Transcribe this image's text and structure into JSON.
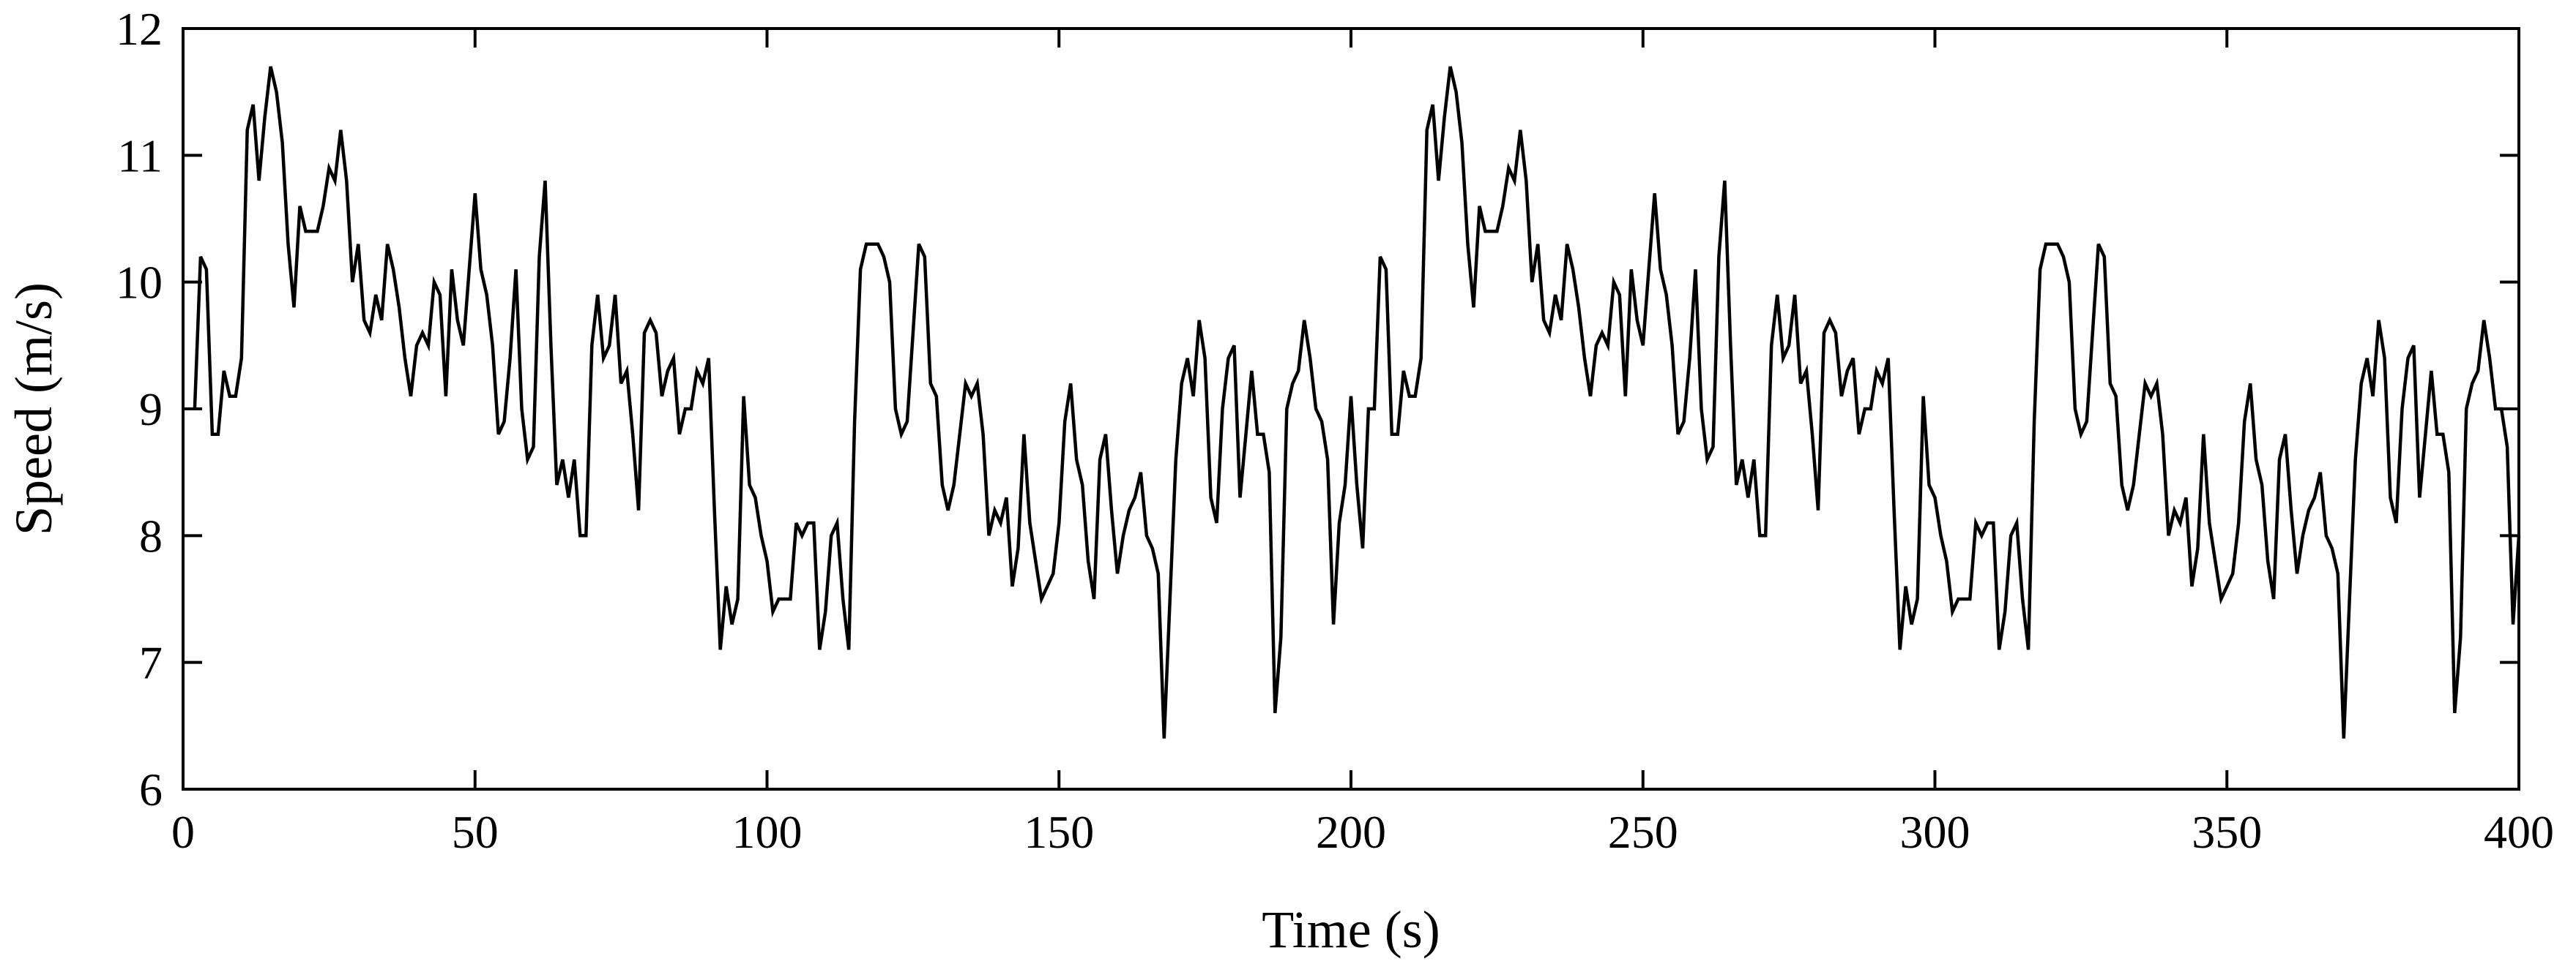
{
  "chart_data": {
    "type": "line",
    "title": "",
    "xlabel": "Time (s)",
    "ylabel": "Speed (m/s)",
    "xlim": [
      0,
      400
    ],
    "ylim": [
      6,
      12
    ],
    "xticks": [
      0,
      50,
      100,
      150,
      200,
      250,
      300,
      350,
      400
    ],
    "yticks": [
      6,
      7,
      8,
      9,
      10,
      11,
      12
    ],
    "grid": false,
    "series": [
      {
        "color": "#000000",
        "x": [
          2,
          3,
          4,
          5,
          6,
          7,
          8,
          9,
          10,
          11,
          12,
          13,
          14,
          15,
          16,
          17,
          18,
          19,
          20,
          21,
          22,
          23,
          24,
          25,
          26,
          27,
          28,
          29,
          30,
          31,
          32,
          33,
          34,
          35,
          36,
          37,
          38,
          39,
          40,
          41,
          42,
          43,
          44,
          45,
          46,
          47,
          48,
          49,
          50,
          51,
          52,
          53,
          54,
          55,
          56,
          57,
          58,
          59,
          60,
          61,
          62,
          63,
          64,
          65,
          66,
          67,
          68,
          69,
          70,
          71,
          72,
          73,
          74,
          75,
          76,
          77,
          78,
          79,
          80,
          81,
          82,
          83,
          84,
          85,
          86,
          87,
          88,
          89,
          90,
          91,
          92,
          93,
          94,
          95,
          96,
          97,
          98,
          99,
          100,
          101,
          102,
          103,
          104,
          105,
          106,
          107,
          108,
          109,
          110,
          111,
          112,
          113,
          114,
          115,
          116,
          117,
          118,
          119,
          120,
          121,
          122,
          123,
          124,
          125,
          126,
          127,
          128,
          129,
          130,
          131,
          132,
          133,
          134,
          135,
          136,
          137,
          138,
          139,
          140,
          141,
          142,
          143,
          144,
          145,
          146,
          147,
          148,
          149,
          150,
          151,
          152,
          153,
          154,
          155,
          156,
          157,
          158,
          159,
          160,
          161,
          162,
          163,
          164,
          165,
          166,
          167,
          168,
          169,
          170,
          171,
          172,
          173,
          174,
          175,
          176,
          177,
          178,
          179,
          180,
          181,
          182,
          183,
          184,
          185,
          186,
          187,
          188,
          189,
          190,
          191,
          192,
          193,
          194,
          195,
          196,
          197,
          198,
          199,
          200,
          201,
          202,
          203,
          204,
          205,
          206,
          207,
          208,
          209,
          210,
          211,
          212,
          213,
          214,
          215,
          216,
          217,
          218,
          219,
          220,
          221,
          222,
          223,
          224,
          225,
          226,
          227,
          228,
          229,
          230,
          231,
          232,
          233,
          234,
          235,
          236,
          237,
          238,
          239,
          240,
          241,
          242,
          243,
          244,
          245,
          246,
          247,
          248,
          249,
          250,
          251,
          252,
          253,
          254,
          255,
          256,
          257,
          258,
          259,
          260,
          261,
          262,
          263,
          264,
          265,
          266,
          267,
          268,
          269,
          270,
          271,
          272,
          273,
          274,
          275,
          276,
          277,
          278,
          279,
          280,
          281,
          282,
          283,
          284,
          285,
          286,
          287,
          288,
          289,
          290,
          291,
          292,
          293,
          294,
          295,
          296,
          297,
          298,
          299,
          300,
          301,
          302,
          303,
          304,
          305,
          306,
          307,
          308,
          309,
          310,
          311,
          312,
          313,
          314,
          315,
          316,
          317,
          318,
          319,
          320,
          321,
          322,
          323,
          324,
          325,
          326,
          327,
          328,
          329,
          330,
          331,
          332,
          333,
          334,
          335,
          336,
          337,
          338,
          339,
          340,
          341,
          342,
          343,
          344,
          345,
          346,
          347,
          348,
          349,
          350,
          351,
          352,
          353,
          354,
          355,
          356,
          357,
          358,
          359,
          360,
          361,
          362,
          363,
          364,
          365,
          366,
          367,
          368,
          369,
          370,
          371,
          372,
          373,
          374,
          375,
          376,
          377,
          378,
          379,
          380,
          381,
          382,
          383,
          384,
          385,
          386,
          387,
          388,
          389,
          390,
          391,
          392,
          393,
          394,
          395,
          396,
          397,
          398,
          399,
          400
        ],
        "y": [
          9.0,
          10.2,
          10.1,
          8.8,
          8.8,
          9.3,
          9.1,
          9.1,
          9.4,
          11.2,
          11.4,
          10.8,
          11.3,
          11.7,
          11.5,
          11.1,
          10.3,
          9.8,
          10.6,
          10.4,
          10.4,
          10.4,
          10.6,
          10.9,
          10.8,
          11.2,
          10.8,
          10.0,
          10.3,
          9.7,
          9.6,
          9.9,
          9.7,
          10.3,
          10.1,
          9.8,
          9.4,
          9.1,
          9.5,
          9.6,
          9.5,
          10.0,
          9.9,
          9.1,
          10.1,
          9.7,
          9.5,
          10.1,
          10.7,
          10.1,
          9.9,
          9.5,
          8.8,
          8.9,
          9.4,
          10.1,
          9.0,
          8.6,
          8.7,
          10.2,
          10.8,
          9.5,
          8.4,
          8.6,
          8.3,
          8.6,
          8.0,
          8.0,
          9.5,
          9.9,
          9.4,
          9.5,
          9.9,
          9.2,
          9.3,
          8.8,
          8.2,
          9.6,
          9.7,
          9.6,
          9.1,
          9.3,
          9.4,
          8.8,
          9.0,
          9.0,
          9.3,
          9.2,
          9.4,
          8.2,
          7.1,
          7.6,
          7.3,
          7.5,
          9.1,
          8.4,
          8.3,
          8.0,
          7.8,
          7.4,
          7.5,
          7.5,
          7.5,
          8.1,
          8.0,
          8.1,
          8.1,
          7.1,
          7.4,
          8.0,
          8.1,
          7.5,
          7.1,
          8.9,
          10.1,
          10.3,
          10.3,
          10.3,
          10.2,
          10.0,
          9.0,
          8.8,
          8.9,
          9.6,
          10.3,
          10.2,
          9.2,
          9.1,
          8.4,
          8.2,
          8.4,
          8.8,
          9.2,
          9.1,
          9.2,
          8.8,
          8.0,
          8.2,
          8.1,
          8.3,
          7.6,
          7.9,
          8.8,
          8.1,
          7.8,
          7.5,
          7.6,
          7.7,
          8.1,
          8.9,
          9.2,
          8.6,
          8.4,
          7.8,
          7.5,
          8.6,
          8.8,
          8.2,
          7.7,
          8.0,
          8.2,
          8.3,
          8.5,
          8.0,
          7.9,
          7.7,
          6.4,
          7.5,
          8.6,
          9.2,
          9.4,
          9.1,
          9.7,
          9.4,
          8.3,
          8.1,
          9.0,
          9.4,
          9.5,
          8.3,
          8.8,
          9.3,
          8.8,
          8.8,
          8.5,
          6.6,
          7.2,
          9.0,
          9.2,
          9.3,
          9.7,
          9.4,
          9.0,
          8.9,
          8.6,
          7.3,
          8.1,
          8.4,
          9.1,
          8.4,
          7.9,
          9.0,
          9.0,
          10.2,
          10.1,
          8.8,
          8.8,
          9.3,
          9.1,
          9.1,
          9.4,
          11.2,
          11.4,
          10.8,
          11.3,
          11.7,
          11.5,
          11.1,
          10.3,
          9.8,
          10.6,
          10.4,
          10.4,
          10.4,
          10.6,
          10.9,
          10.8,
          11.2,
          10.8,
          10.0,
          10.3,
          9.7,
          9.6,
          9.9,
          9.7,
          10.3,
          10.1,
          9.8,
          9.4,
          9.1,
          9.5,
          9.6,
          9.5,
          10.0,
          9.9,
          9.1,
          10.1,
          9.7,
          9.5,
          10.1,
          10.7,
          10.1,
          9.9,
          9.5,
          8.8,
          8.9,
          9.4,
          10.1,
          9.0,
          8.6,
          8.7,
          10.2,
          10.8,
          9.5,
          8.4,
          8.6,
          8.3,
          8.6,
          8.0,
          8.0,
          9.5,
          9.9,
          9.4,
          9.5,
          9.9,
          9.2,
          9.3,
          8.8,
          8.2,
          9.6,
          9.7,
          9.6,
          9.1,
          9.3,
          9.4,
          8.8,
          9.0,
          9.0,
          9.3,
          9.2,
          9.4,
          8.2,
          7.1,
          7.6,
          7.3,
          7.5,
          9.1,
          8.4,
          8.3,
          8.0,
          7.8,
          7.4,
          7.5,
          7.5,
          7.5,
          8.1,
          8.0,
          8.1,
          8.1,
          7.1,
          7.4,
          8.0,
          8.1,
          7.5,
          7.1,
          8.9,
          10.1,
          10.3,
          10.3,
          10.3,
          10.2,
          10.0,
          9.0,
          8.8,
          8.9,
          9.6,
          10.3,
          10.2,
          9.2,
          9.1,
          8.4,
          8.2,
          8.4,
          8.8,
          9.2,
          9.1,
          9.2,
          8.8,
          8.0,
          8.2,
          8.1,
          8.3,
          7.6,
          7.9,
          8.8,
          8.1,
          7.8,
          7.5,
          7.6,
          7.7,
          8.1,
          8.9,
          9.2,
          8.6,
          8.4,
          7.8,
          7.5,
          8.6,
          8.8,
          8.2,
          7.7,
          8.0,
          8.2,
          8.3,
          8.5,
          8.0,
          7.9,
          7.7,
          6.4,
          7.5,
          8.6,
          9.2,
          9.4,
          9.1,
          9.7,
          9.4,
          8.3,
          8.1,
          9.0,
          9.4,
          9.5,
          8.3,
          8.8,
          9.3,
          8.8,
          8.8,
          8.5,
          6.6,
          7.2,
          9.0,
          9.2,
          9.3,
          9.7,
          9.4,
          9.0,
          9.0,
          8.7,
          7.3,
          8.0
        ]
      }
    ]
  }
}
